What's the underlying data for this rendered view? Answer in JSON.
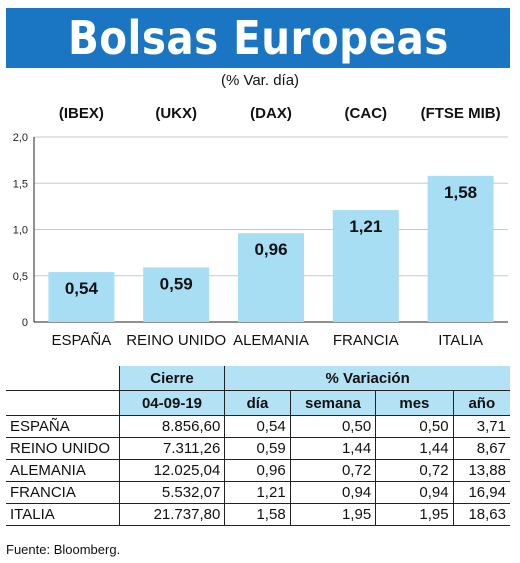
{
  "header": {
    "title": "Bolsas Europeas",
    "subtitle": "(% Var. día)"
  },
  "chart_data": {
    "type": "bar",
    "categories": [
      "ESPAÑA",
      "REINO UNIDO",
      "ALEMANIA",
      "FRANCIA",
      "ITALIA"
    ],
    "index_labels": [
      "(IBEX)",
      "(UKX)",
      "(DAX)",
      "(CAC)",
      "(FTSE MIB)"
    ],
    "values": [
      0.54,
      0.59,
      0.96,
      1.21,
      1.58
    ],
    "value_labels": [
      "0,54",
      "0,59",
      "0,96",
      "1,21",
      "1,58"
    ],
    "ylim": [
      0,
      2.0
    ],
    "yticks": [
      0,
      0.5,
      1.0,
      1.5,
      2.0
    ],
    "ytick_labels": [
      "0",
      "0,5",
      "1,0",
      "1,5",
      "2,0"
    ],
    "grid": true,
    "bar_color": "#a8def4"
  },
  "table": {
    "header_cierre": "Cierre",
    "header_variacion": "% Variación",
    "date": "04-09-19",
    "sub_headers": [
      "día",
      "semana",
      "mes",
      "año"
    ],
    "rows": [
      {
        "country": "ESPAÑA",
        "cierre": "8.856,60",
        "dia": "0,54",
        "semana": "0,50",
        "mes": "0,50",
        "ano": "3,71"
      },
      {
        "country": "REINO UNIDO",
        "cierre": "7.311,26",
        "dia": "0,59",
        "semana": "1,44",
        "mes": "1,44",
        "ano": "8,67"
      },
      {
        "country": "ALEMANIA",
        "cierre": "12.025,04",
        "dia": "0,96",
        "semana": "0,72",
        "mes": "0,72",
        "ano": "13,88"
      },
      {
        "country": "FRANCIA",
        "cierre": "5.532,07",
        "dia": "1,21",
        "semana": "0,94",
        "mes": "0,94",
        "ano": "16,94"
      },
      {
        "country": "ITALIA",
        "cierre": "21.737,80",
        "dia": "1,58",
        "semana": "1,95",
        "mes": "1,95",
        "ano": "18,63"
      }
    ]
  },
  "footer": {
    "source": "Fuente: Bloomberg."
  },
  "colors": {
    "banner": "#1a76c2",
    "bar": "#a8def4",
    "table_header": "#b3e2f4"
  }
}
